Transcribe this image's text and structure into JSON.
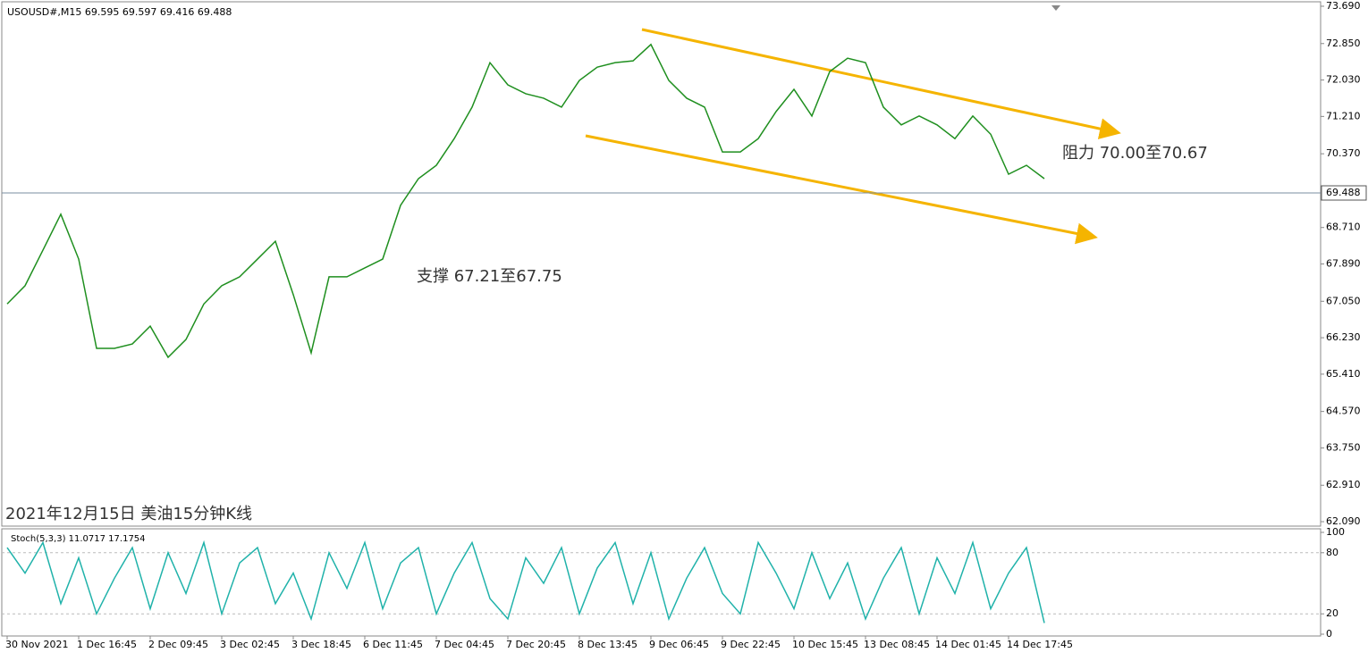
{
  "chart_data": [
    {
      "type": "line",
      "title": "USOUSD#,M15  69.595 69.597 69.416 69.488",
      "categories": [
        "30 Nov 2021",
        null,
        null,
        null,
        "1 Dec 16:45",
        null,
        null,
        null,
        "2 Dec 09:45",
        null,
        null,
        null,
        "3 Dec 02:45",
        null,
        null,
        null,
        "3 Dec 18:45",
        null,
        null,
        null,
        "6 Dec 11:45",
        null,
        null,
        null,
        "7 Dec 04:45",
        null,
        null,
        null,
        "7 Dec 20:45",
        null,
        null,
        null,
        "8 Dec 13:45",
        null,
        null,
        null,
        "9 Dec 06:45",
        null,
        null,
        null,
        "9 Dec 22:45",
        null,
        null,
        null,
        "10 Dec 15:45",
        null,
        null,
        null,
        "13 Dec 08:45",
        null,
        null,
        null,
        "14 Dec 01:45",
        null,
        null,
        null,
        "14 Dec 17:45",
        null,
        null
      ],
      "values": [
        66.99,
        67.4,
        68.2,
        69.01,
        68.0,
        65.99,
        65.99,
        66.09,
        66.49,
        65.79,
        66.19,
        66.99,
        67.4,
        67.6,
        68.0,
        68.4,
        67.2,
        65.89,
        67.6,
        67.6,
        67.8,
        68.0,
        69.21,
        69.81,
        70.11,
        70.71,
        71.42,
        72.42,
        71.92,
        71.72,
        71.62,
        71.42,
        72.02,
        72.32,
        72.42,
        72.46,
        72.83,
        72.02,
        71.62,
        71.42,
        70.41,
        70.41,
        70.71,
        71.32,
        71.82,
        71.22,
        72.22,
        72.52,
        72.42,
        71.42,
        71.02,
        71.22,
        71.02,
        70.71,
        71.22,
        70.81,
        69.91,
        70.11,
        69.81
      ],
      "color": "#1f8f1f",
      "ylim": [
        61.97,
        73.77
      ],
      "yticks": [
        {
          "value": 73.69,
          "label": "73.690"
        },
        {
          "value": 72.85,
          "label": "72.850"
        },
        {
          "value": 72.03,
          "label": "72.030"
        },
        {
          "value": 71.21,
          "label": "71.210"
        },
        {
          "value": 70.37,
          "label": "70.370"
        },
        {
          "value": 68.71,
          "label": "68.710"
        },
        {
          "value": 67.89,
          "label": "67.890"
        },
        {
          "value": 67.05,
          "label": "67.050"
        },
        {
          "value": 66.23,
          "label": "66.230"
        },
        {
          "value": 65.41,
          "label": "65.410"
        },
        {
          "value": 64.57,
          "label": "64.570"
        },
        {
          "value": 63.75,
          "label": "63.750"
        },
        {
          "value": 62.91,
          "label": "62.910"
        },
        {
          "value": 62.09,
          "label": "62.090"
        }
      ],
      "current_price": 69.488,
      "annotations": [
        "阻力 70.00至70.67",
        "支撑 67.21至67.75",
        "2021年12月15日 美油15分钟K线"
      ]
    },
    {
      "type": "line",
      "title": "Stoch(5,3,3) 11.0717 17.1754",
      "values": [
        85,
        60,
        90,
        30,
        75,
        20,
        55,
        85,
        25,
        80,
        40,
        90,
        20,
        70,
        85,
        30,
        60,
        15,
        80,
        45,
        90,
        25,
        70,
        85,
        20,
        60,
        90,
        35,
        15,
        75,
        50,
        85,
        20,
        65,
        90,
        30,
        80,
        15,
        55,
        85,
        40,
        20,
        90,
        60,
        25,
        80,
        35,
        70,
        15,
        55,
        85,
        20,
        75,
        40,
        90,
        25,
        60,
        85,
        11
      ],
      "color": "#20b2aa",
      "ylim": [
        0,
        100
      ],
      "yticks": [
        100,
        80,
        20,
        0
      ]
    }
  ]
}
